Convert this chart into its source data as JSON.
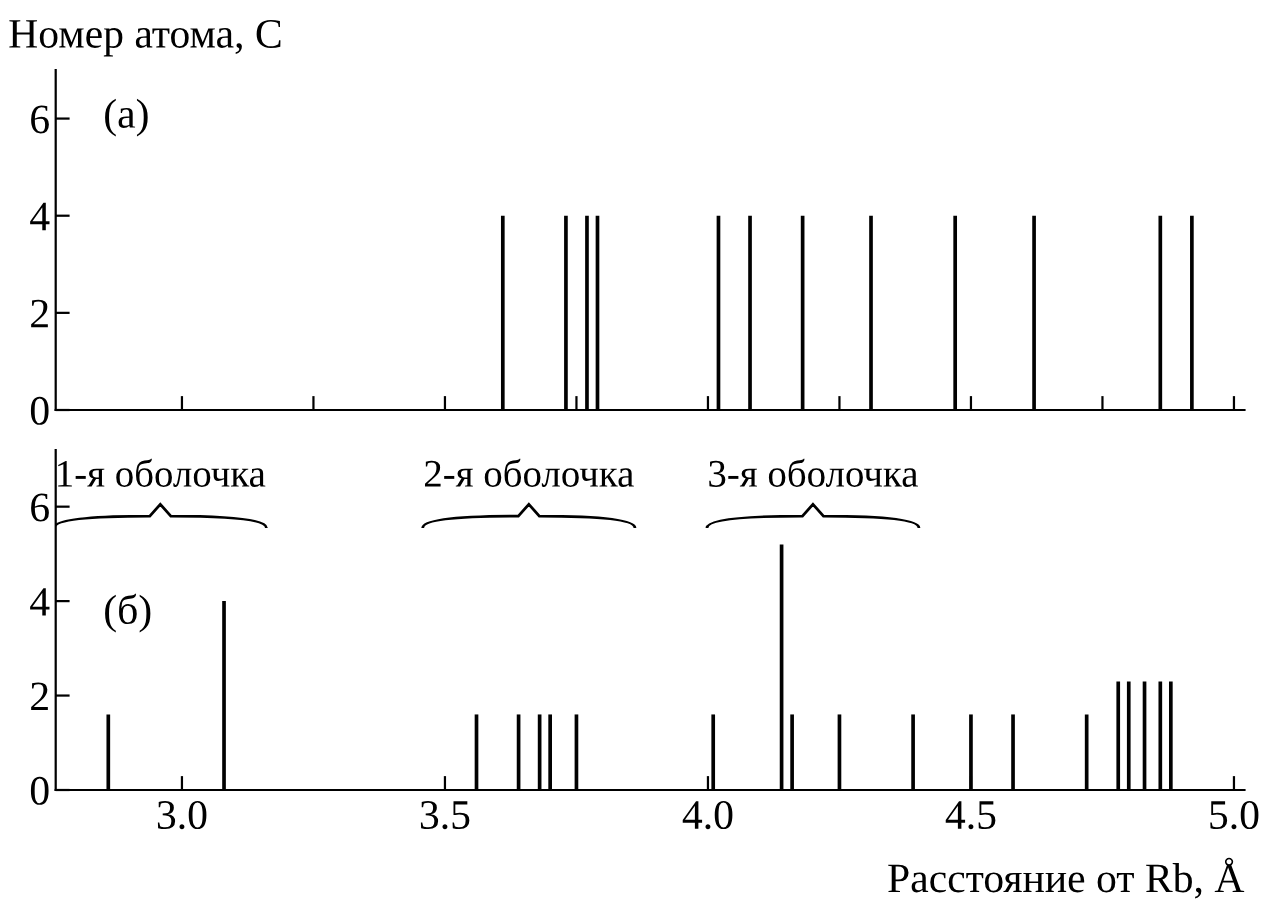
{
  "chart_data": [
    {
      "type": "bar",
      "ylabel": "Номер атома, C",
      "x": [
        3.61,
        3.73,
        3.77,
        3.79,
        4.02,
        4.08,
        4.18,
        4.31,
        4.47,
        4.62,
        4.86,
        4.92
      ],
      "values": [
        4,
        4,
        4,
        4,
        4,
        4,
        4,
        4,
        4,
        4,
        4,
        4
      ],
      "color": "#000000",
      "xlim": [
        2.76,
        5.02
      ],
      "ylim": [
        0,
        7.0
      ],
      "xticks": [
        {
          "value": 3.0,
          "label": null
        },
        {
          "value": 3.25,
          "label": null
        },
        {
          "value": 3.5,
          "label": null
        },
        {
          "value": 3.75,
          "label": null
        },
        {
          "value": 4.0,
          "label": null
        },
        {
          "value": 4.25,
          "label": null
        },
        {
          "value": 4.5,
          "label": null
        },
        {
          "value": 4.75,
          "label": null
        },
        {
          "value": 5.0,
          "label": null
        }
      ],
      "yticks": [
        0,
        2,
        4,
        6
      ],
      "tick_labels": "y",
      "grid": false,
      "legend": false,
      "annotations": [
        "(a)"
      ]
    },
    {
      "type": "bar",
      "xlabel": "Расстояние от Rb, Å",
      "x": [
        2.86,
        3.08,
        3.56,
        3.64,
        3.68,
        3.7,
        3.75,
        4.01,
        4.14,
        4.16,
        4.25,
        4.39,
        4.5,
        4.58,
        4.72,
        4.78,
        4.8,
        4.83,
        4.86,
        4.88
      ],
      "values": [
        1.6,
        4,
        1.6,
        1.6,
        1.6,
        1.6,
        1.6,
        1.6,
        5.2,
        1.6,
        1.6,
        1.6,
        1.6,
        1.6,
        1.6,
        2.3,
        2.3,
        2.3,
        2.3,
        2.3
      ],
      "color": "#000000",
      "xlim": [
        2.76,
        5.02
      ],
      "ylim": [
        0,
        7.2
      ],
      "xticks": [
        {
          "value": 3.0,
          "label": "3.0"
        },
        {
          "value": 3.5,
          "label": "3.5"
        },
        {
          "value": 4.0,
          "label": "4.0"
        },
        {
          "value": 4.5,
          "label": "4.5"
        },
        {
          "value": 5.0,
          "label": "5.0"
        }
      ],
      "yticks": [
        0,
        2,
        4,
        6
      ],
      "grid": false,
      "legend": false,
      "annotations": [
        "(б)",
        "1-я оболочка",
        "2-я оболочка",
        "3-я оболочка"
      ]
    }
  ]
}
